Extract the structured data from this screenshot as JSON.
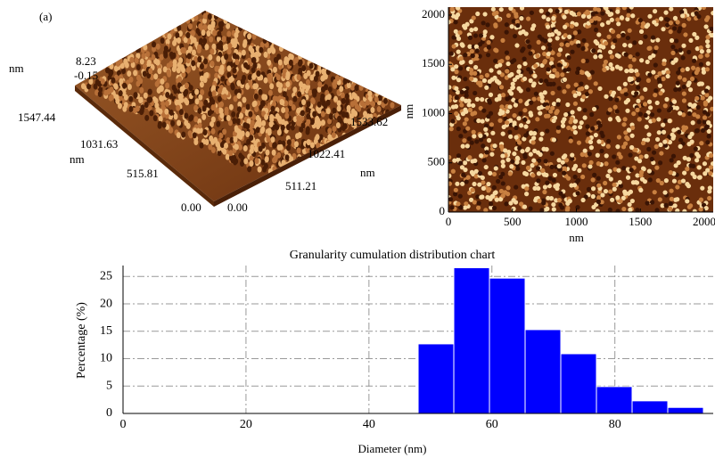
{
  "panel_label": "(a)",
  "surface_3d": {
    "z_labels": [
      "8.23",
      "-0.15"
    ],
    "z_unit": "nm",
    "left_axis_labels": [
      "1547.44",
      "1031.63",
      "515.81",
      "0.00"
    ],
    "left_axis_unit": "nm",
    "right_axis_labels": [
      "0.00",
      "511.21",
      "1022.41",
      "1533.62"
    ],
    "right_axis_unit": "nm"
  },
  "chart_data": [
    {
      "type": "image",
      "xlabel": "nm",
      "ylabel": "nm",
      "xlim": [
        0,
        2000
      ],
      "ylim": [
        0,
        2000
      ],
      "xticks": [
        0,
        500,
        1000,
        1500,
        2000
      ],
      "yticks": [
        0,
        500,
        1000,
        1500,
        2000
      ]
    },
    {
      "type": "histogram",
      "title": "Granularity cumulation distribution chart",
      "xlabel": "Diameter (nm)",
      "ylabel": "Percentage (%)",
      "color": "#0000ff",
      "bins": [
        48,
        53.8,
        59.6,
        65.4,
        71.2,
        77,
        82.8,
        88.6,
        94.4
      ],
      "values": [
        12.7,
        26.6,
        24.7,
        15.3,
        10.9,
        4.9,
        2.3,
        1.1
      ],
      "xlim": [
        0,
        94.4
      ],
      "ylim": [
        0,
        27
      ],
      "xticks": [
        0,
        20,
        40,
        60,
        80
      ],
      "yticks": [
        0,
        5,
        10,
        15,
        20,
        25
      ],
      "grid": true
    }
  ]
}
